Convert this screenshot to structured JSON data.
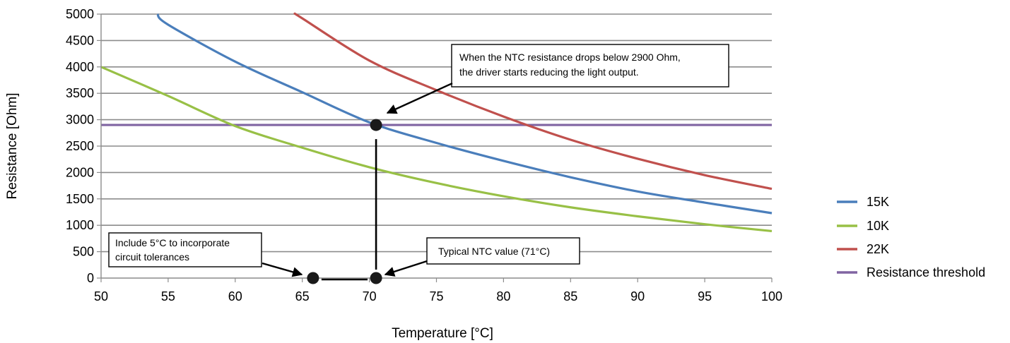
{
  "chart_data": {
    "type": "line",
    "title": "",
    "xlabel": "Temperature [°C]",
    "ylabel": "Resistance [Ohm]",
    "xlim": [
      50,
      100
    ],
    "ylim": [
      0,
      5000
    ],
    "x_ticks": [
      50,
      55,
      60,
      65,
      70,
      75,
      80,
      85,
      90,
      95,
      100
    ],
    "y_ticks": [
      0,
      500,
      1000,
      1500,
      2000,
      2500,
      3000,
      3500,
      4000,
      4500,
      5000
    ],
    "grid": "horizontal",
    "legend_position": "right",
    "series": [
      {
        "name": "15K",
        "color": "#4a7ebb",
        "x": [
          54.2,
          55,
          60,
          65,
          70,
          75,
          80,
          85,
          90,
          95,
          100
        ],
        "y": [
          5000,
          4800,
          4100,
          3520,
          2950,
          2560,
          2220,
          1910,
          1640,
          1430,
          1230
        ]
      },
      {
        "name": "10K",
        "color": "#98c046",
        "x": [
          50,
          55,
          60,
          65,
          70,
          75,
          80,
          85,
          90,
          95,
          100
        ],
        "y": [
          4000,
          3450,
          2880,
          2470,
          2100,
          1800,
          1550,
          1340,
          1170,
          1020,
          890
        ]
      },
      {
        "name": "22K",
        "color": "#c0504d",
        "x": [
          64.5,
          65,
          70,
          75,
          80,
          85,
          90,
          95,
          100
        ],
        "y": [
          5000,
          4920,
          4120,
          3560,
          3060,
          2620,
          2260,
          1950,
          1690
        ]
      },
      {
        "name": "Resistance threshold",
        "color": "#8064a2",
        "x": [
          50,
          100
        ],
        "y": [
          2900,
          2900
        ]
      }
    ],
    "markers": [
      {
        "x": 70.5,
        "y": 2900
      },
      {
        "x": 70.5,
        "y": 0
      },
      {
        "x": 65.8,
        "y": 0
      }
    ],
    "annotations": [
      {
        "lines": [
          "When the NTC resistance drops below 2900 Ohm,",
          "the driver starts reducing the light output."
        ]
      },
      {
        "lines": [
          "Typical NTC value (71°C)"
        ]
      },
      {
        "lines": [
          "Include 5°C to incorporate",
          "circuit tolerances"
        ]
      }
    ]
  }
}
